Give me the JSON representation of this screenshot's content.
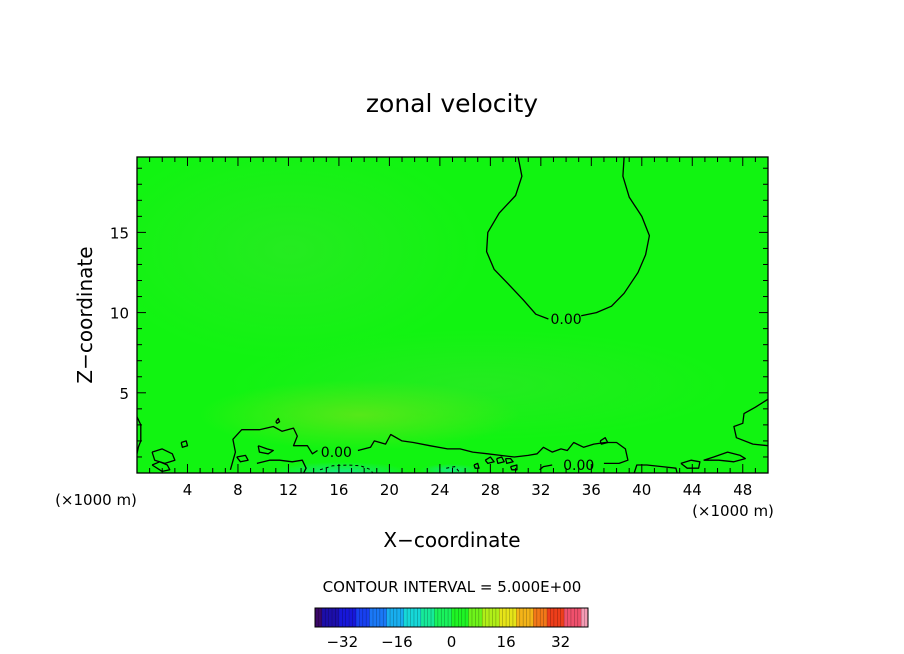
{
  "chart_data": {
    "type": "heatmap",
    "title": "zonal velocity",
    "xlabel": "X−coordinate",
    "ylabel": "Z−coordinate",
    "x_unit_left": "(×1000 m)",
    "x_unit_right": "(×1000 m)",
    "xlim": [
      0,
      50
    ],
    "ylim": [
      0,
      19.7
    ],
    "xticks": [
      4,
      8,
      12,
      16,
      20,
      24,
      28,
      32,
      36,
      40,
      44,
      48
    ],
    "xtick_labels": [
      "4",
      "8",
      "12",
      "16",
      "20",
      "24",
      "28",
      "32",
      "36",
      "40",
      "44",
      "48"
    ],
    "yticks": [
      5,
      10,
      15
    ],
    "ytick_labels": [
      "5",
      "10",
      "15"
    ],
    "contour_labels": [
      {
        "text": "0.00",
        "x": 34.0,
        "z": 9.6
      },
      {
        "text": "0.00",
        "x": 15.8,
        "z": 1.3
      },
      {
        "text": "0.00",
        "x": 35.0,
        "z": 0.5
      }
    ],
    "zero_contours": [
      [
        [
          30.2,
          19.7
        ],
        [
          30.5,
          18.5
        ],
        [
          30.0,
          17.3
        ],
        [
          28.7,
          16.2
        ],
        [
          27.8,
          15.0
        ],
        [
          27.7,
          13.8
        ],
        [
          28.3,
          12.7
        ],
        [
          29.4,
          11.8
        ],
        [
          30.6,
          10.8
        ],
        [
          31.6,
          9.9
        ],
        [
          32.6,
          9.6
        ]
      ],
      [
        [
          35.2,
          9.8
        ],
        [
          36.4,
          10.0
        ],
        [
          37.6,
          10.4
        ],
        [
          38.6,
          11.2
        ],
        [
          39.7,
          12.5
        ],
        [
          40.3,
          13.6
        ],
        [
          40.6,
          14.8
        ],
        [
          40.0,
          16.0
        ],
        [
          39.0,
          17.2
        ],
        [
          38.5,
          18.5
        ],
        [
          38.6,
          19.7
        ]
      ],
      [
        [
          7.4,
          0.2
        ],
        [
          7.8,
          1.3
        ],
        [
          7.6,
          2.1
        ],
        [
          8.3,
          2.7
        ],
        [
          9.7,
          2.7
        ],
        [
          10.8,
          2.9
        ],
        [
          11.5,
          2.6
        ],
        [
          12.4,
          2.8
        ],
        [
          12.7,
          2.3
        ],
        [
          12.4,
          1.7
        ],
        [
          13.5,
          1.7
        ],
        [
          13.9,
          1.2
        ],
        [
          14.3,
          1.4
        ]
      ],
      [
        [
          17.5,
          1.4
        ],
        [
          18.5,
          1.6
        ],
        [
          18.8,
          2.0
        ],
        [
          19.7,
          1.8
        ],
        [
          20.1,
          2.4
        ],
        [
          21.0,
          2.0
        ],
        [
          21.9,
          1.9
        ],
        [
          23.2,
          1.7
        ],
        [
          24.6,
          1.5
        ],
        [
          25.6,
          1.5
        ],
        [
          26.6,
          1.3
        ],
        [
          27.8,
          1.2
        ],
        [
          28.8,
          1.1
        ],
        [
          29.9,
          1.0
        ],
        [
          31.0,
          1.1
        ],
        [
          31.7,
          1.2
        ],
        [
          32.2,
          1.6
        ],
        [
          32.9,
          1.3
        ],
        [
          33.6,
          1.5
        ],
        [
          34.1,
          1.4
        ],
        [
          34.6,
          1.9
        ],
        [
          35.4,
          1.6
        ],
        [
          36.2,
          1.8
        ],
        [
          37.1,
          1.9
        ],
        [
          38.0,
          1.9
        ],
        [
          38.7,
          1.5
        ],
        [
          38.9,
          0.8
        ],
        [
          38.2,
          0.6
        ],
        [
          37.0,
          0.6
        ]
      ],
      [
        [
          32.9,
          0.5
        ],
        [
          32.2,
          0.4
        ],
        [
          31.9,
          0.2
        ]
      ],
      [
        [
          39.4,
          0.0
        ],
        [
          39.6,
          0.5
        ],
        [
          40.4,
          0.5
        ],
        [
          41.6,
          0.4
        ],
        [
          42.7,
          0.3
        ],
        [
          42.8,
          0.0
        ]
      ],
      [
        [
          0.0,
          3.5
        ],
        [
          0.3,
          3.0
        ],
        [
          0.3,
          2.0
        ],
        [
          0.1,
          1.6
        ],
        [
          0.0,
          1.2
        ]
      ],
      [
        [
          1.2,
          1.3
        ],
        [
          2.0,
          1.5
        ],
        [
          2.8,
          1.2
        ],
        [
          3.0,
          0.8
        ],
        [
          2.2,
          0.6
        ],
        [
          1.4,
          0.8
        ],
        [
          1.2,
          1.3
        ]
      ],
      [
        [
          3.5,
          1.9
        ],
        [
          3.9,
          2.0
        ],
        [
          4.0,
          1.7
        ],
        [
          3.6,
          1.6
        ],
        [
          3.5,
          1.9
        ]
      ],
      [
        [
          9.6,
          1.7
        ],
        [
          10.3,
          1.5
        ],
        [
          10.8,
          1.4
        ],
        [
          10.4,
          1.2
        ],
        [
          9.7,
          1.3
        ],
        [
          9.6,
          1.7
        ]
      ],
      [
        [
          7.9,
          1.0
        ],
        [
          8.6,
          1.1
        ],
        [
          8.8,
          0.8
        ],
        [
          8.2,
          0.7
        ],
        [
          7.9,
          1.0
        ]
      ],
      [
        [
          9.5,
          0.6
        ],
        [
          10.5,
          0.8
        ],
        [
          11.3,
          0.8
        ],
        [
          12.3,
          0.7
        ],
        [
          13.1,
          0.8
        ],
        [
          13.4,
          0.3
        ],
        [
          13.2,
          0.0
        ]
      ],
      [
        [
          27.6,
          0.8
        ],
        [
          28.0,
          1.0
        ],
        [
          28.3,
          0.7
        ],
        [
          27.8,
          0.6
        ],
        [
          27.6,
          0.8
        ]
      ],
      [
        [
          28.5,
          0.9
        ],
        [
          28.9,
          1.0
        ],
        [
          29.1,
          0.7
        ],
        [
          28.6,
          0.6
        ],
        [
          28.5,
          0.9
        ]
      ],
      [
        [
          29.2,
          0.9
        ],
        [
          29.6,
          0.9
        ],
        [
          29.8,
          0.7
        ],
        [
          29.3,
          0.6
        ],
        [
          29.2,
          0.9
        ]
      ],
      [
        [
          29.6,
          0.4
        ],
        [
          30.1,
          0.5
        ],
        [
          30.1,
          0.2
        ],
        [
          29.7,
          0.2
        ],
        [
          29.6,
          0.4
        ]
      ],
      [
        [
          26.7,
          0.5
        ],
        [
          27.0,
          0.6
        ],
        [
          27.1,
          0.3
        ],
        [
          26.8,
          0.3
        ],
        [
          26.7,
          0.5
        ]
      ],
      [
        [
          36.7,
          2.0
        ],
        [
          37.1,
          2.2
        ],
        [
          37.3,
          1.9
        ],
        [
          36.8,
          1.8
        ],
        [
          36.7,
          2.0
        ]
      ],
      [
        [
          43.1,
          0.6
        ],
        [
          43.9,
          0.8
        ],
        [
          44.6,
          0.7
        ],
        [
          44.5,
          0.3
        ],
        [
          43.6,
          0.3
        ],
        [
          43.1,
          0.6
        ]
      ],
      [
        [
          44.9,
          0.8
        ],
        [
          45.7,
          1.0
        ],
        [
          46.8,
          1.3
        ],
        [
          47.8,
          1.1
        ],
        [
          48.2,
          0.9
        ],
        [
          47.3,
          0.7
        ],
        [
          46.1,
          0.8
        ],
        [
          44.9,
          0.8
        ]
      ],
      [
        [
          50.0,
          1.7
        ],
        [
          48.8,
          1.8
        ],
        [
          47.5,
          2.2
        ],
        [
          47.3,
          2.9
        ],
        [
          48.0,
          3.1
        ],
        [
          48.1,
          3.7
        ],
        [
          49.0,
          4.1
        ],
        [
          50.0,
          4.6
        ]
      ],
      [
        [
          11.0,
          3.2
        ],
        [
          11.2,
          3.4
        ],
        [
          11.3,
          3.2
        ],
        [
          11.1,
          3.1
        ],
        [
          11.0,
          3.2
        ]
      ],
      [
        [
          1.2,
          0.5
        ],
        [
          1.8,
          0.7
        ],
        [
          2.4,
          0.5
        ],
        [
          2.6,
          0.2
        ],
        [
          2.0,
          0.1
        ],
        [
          1.2,
          0.5
        ]
      ]
    ],
    "negative_dashed_contours": [
      [
        [
          14.5,
          0.2
        ],
        [
          15.5,
          0.45
        ],
        [
          16.7,
          0.5
        ],
        [
          17.7,
          0.45
        ],
        [
          18.4,
          0.25
        ],
        [
          18.7,
          0.0
        ]
      ],
      [
        [
          24.5,
          0.3
        ],
        [
          25.2,
          0.4
        ],
        [
          25.5,
          0.1
        ]
      ]
    ],
    "field_colors": {
      "base": "#11f411",
      "light": "#29e821",
      "yellowish": "#5fe41a",
      "cyan": "#17e98c"
    },
    "contour_interval_text": "CONTOUR INTERVAL = 5.000E+00",
    "colorbar": {
      "min": -40,
      "max": 40,
      "interval": 5,
      "ticks": [
        -32,
        -16,
        0,
        16,
        32
      ],
      "tick_labels": [
        "−32",
        "−16",
        "0",
        "16",
        "32"
      ],
      "colors": [
        "#3a0868",
        "#1c0eaa",
        "#1717d9",
        "#1840f0",
        "#1a78f6",
        "#18aeef",
        "#16d8d8",
        "#16ea9a",
        "#19f35c",
        "#1ef524",
        "#6ef41a",
        "#b0ef18",
        "#e6e418",
        "#f4b418",
        "#f27818",
        "#ee3e1a",
        "#f0506c",
        "#f49cb4"
      ]
    }
  }
}
